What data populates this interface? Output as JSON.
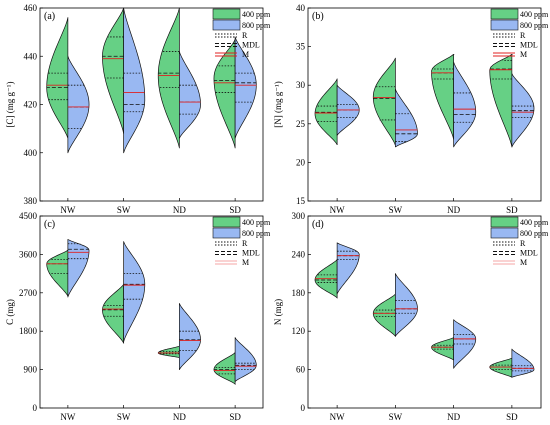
{
  "colors": {
    "400ppm": "#66d085",
    "800ppm": "#99b8f2",
    "mean": "#e02020",
    "line": "#111111",
    "legend_m_light": "#f4a6a6"
  },
  "legend_labels": {
    "g400": "400 ppm",
    "g800": "800 ppm",
    "r": "R",
    "mdl": "MDL",
    "m": "M"
  },
  "chart_data": [
    {
      "type": "violin",
      "panel": "(a)",
      "ylabel": "[C] (mg g⁻¹)",
      "ylim": [
        380,
        460
      ],
      "yticks": [
        380,
        400,
        420,
        440,
        460
      ],
      "categories": [
        "NW",
        "SW",
        "ND",
        "SD"
      ],
      "series": [
        {
          "name": "400 ppm",
          "side": "left",
          "groups": [
            {
              "min": 406,
              "max": 456,
              "peak": 427,
              "q1": 422,
              "median": 427,
              "q3": 433,
              "mean": 428
            },
            {
              "min": 408,
              "max": 460,
              "peak": 440,
              "q1": 431,
              "median": 440,
              "q3": 448,
              "mean": 439
            },
            {
              "min": 402,
              "max": 460,
              "peak": 432,
              "q1": 427,
              "median": 433,
              "q3": 442,
              "mean": 432
            },
            {
              "min": 402,
              "max": 447,
              "peak": 431,
              "q1": 425,
              "median": 430,
              "q3": 436,
              "mean": 429
            }
          ]
        },
        {
          "name": "800 ppm",
          "side": "right",
          "groups": [
            {
              "min": 400,
              "max": 440,
              "peak": 420,
              "q1": 410,
              "median": 419,
              "q3": 428,
              "mean": 419
            },
            {
              "min": 400,
              "max": 460,
              "peak": 422,
              "q1": 417,
              "median": 420,
              "q3": 433,
              "mean": 425
            },
            {
              "min": 406,
              "max": 442,
              "peak": 420,
              "q1": 416,
              "median": 421,
              "q3": 428,
              "mean": 421
            },
            {
              "min": 406,
              "max": 448,
              "peak": 428,
              "q1": 421,
              "median": 429,
              "q3": 433,
              "mean": 428
            }
          ]
        }
      ]
    },
    {
      "type": "violin",
      "panel": "(b)",
      "ylabel": "[N] (mg g⁻¹)",
      "ylim": [
        15,
        40
      ],
      "yticks": [
        15,
        20,
        25,
        30,
        35,
        40
      ],
      "categories": [
        "NW",
        "SW",
        "ND",
        "SD"
      ],
      "series": [
        {
          "name": "400 ppm",
          "side": "left",
          "groups": [
            {
              "min": 22.3,
              "max": 30.8,
              "peak": 26.3,
              "q1": 25.3,
              "median": 26.5,
              "q3": 27.3,
              "mean": 26.4
            },
            {
              "min": 22.2,
              "max": 33.5,
              "peak": 28.5,
              "q1": 25.5,
              "median": 28.3,
              "q3": 29.8,
              "mean": 28.4
            },
            {
              "min": 23.0,
              "max": 34.0,
              "peak": 31.8,
              "q1": 30.8,
              "median": 31.6,
              "q3": 32.1,
              "mean": 31.6
            },
            {
              "min": 22.0,
              "max": 34.0,
              "peak": 32.0,
              "q1": 30.8,
              "median": 32.1,
              "q3": 33.2,
              "mean": 32.0
            }
          ]
        },
        {
          "name": "800 ppm",
          "side": "right",
          "groups": [
            {
              "min": 23.5,
              "max": 30.0,
              "peak": 26.8,
              "q1": 25.8,
              "median": 26.8,
              "q3": 27.5,
              "mean": 26.8
            },
            {
              "min": 22.0,
              "max": 29.5,
              "peak": 23.7,
              "q1": 22.7,
              "median": 23.7,
              "q3": 26.3,
              "mean": 24.2
            },
            {
              "min": 22.0,
              "max": 33.0,
              "peak": 26.5,
              "q1": 25.2,
              "median": 26.2,
              "q3": 29.0,
              "mean": 26.9
            },
            {
              "min": 22.0,
              "max": 31.5,
              "peak": 27.0,
              "q1": 25.8,
              "median": 26.7,
              "q3": 27.3,
              "mean": 26.5
            }
          ]
        }
      ]
    },
    {
      "type": "violin",
      "panel": "(c)",
      "ylabel": "C (mg)",
      "ylim": [
        0,
        4500
      ],
      "yticks": [
        0,
        900,
        1800,
        2700,
        3600,
        4500
      ],
      "categories": [
        "NW",
        "SW",
        "ND",
        "SD"
      ],
      "series": [
        {
          "name": "400 ppm",
          "side": "left",
          "groups": [
            {
              "min": 2620,
              "max": 3700,
              "peak": 3380,
              "q1": 3150,
              "median": 3380,
              "q3": 3480,
              "mean": 3380
            },
            {
              "min": 1520,
              "max": 2900,
              "peak": 2300,
              "q1": 2150,
              "median": 2300,
              "q3": 2400,
              "mean": 2320
            },
            {
              "min": 1180,
              "max": 1450,
              "peak": 1290,
              "q1": 1270,
              "median": 1290,
              "q3": 1320,
              "mean": 1290
            },
            {
              "min": 560,
              "max": 1300,
              "peak": 900,
              "q1": 800,
              "median": 900,
              "q3": 950,
              "mean": 880
            }
          ]
        },
        {
          "name": "800 ppm",
          "side": "right",
          "groups": [
            {
              "min": 2600,
              "max": 3950,
              "peak": 3700,
              "q1": 3500,
              "median": 3720,
              "q3": 3850,
              "mean": 3650
            },
            {
              "min": 1550,
              "max": 3900,
              "peak": 2900,
              "q1": 2550,
              "median": 2900,
              "q3": 3150,
              "mean": 2880
            },
            {
              "min": 900,
              "max": 2450,
              "peak": 1600,
              "q1": 1350,
              "median": 1600,
              "q3": 1800,
              "mean": 1580
            },
            {
              "min": 620,
              "max": 1650,
              "peak": 1000,
              "q1": 900,
              "median": 1000,
              "q3": 1050,
              "mean": 980
            }
          ]
        }
      ]
    },
    {
      "type": "violin",
      "panel": "(d)",
      "ylabel": "N (mg)",
      "ylim": [
        0,
        300
      ],
      "yticks": [
        0,
        60,
        120,
        180,
        240,
        300
      ],
      "categories": [
        "NW",
        "SW",
        "ND",
        "SD"
      ],
      "series": [
        {
          "name": "400 ppm",
          "side": "left",
          "groups": [
            {
              "min": 172,
              "max": 232,
              "peak": 200,
              "q1": 196,
              "median": 200,
              "q3": 208,
              "mean": 202
            },
            {
              "min": 112,
              "max": 178,
              "peak": 148,
              "q1": 143,
              "median": 148,
              "q3": 153,
              "mean": 148
            },
            {
              "min": 75,
              "max": 110,
              "peak": 95,
              "q1": 92,
              "median": 95,
              "q3": 98,
              "mean": 95
            },
            {
              "min": 48,
              "max": 78,
              "peak": 64,
              "q1": 60,
              "median": 64,
              "q3": 67,
              "mean": 64
            }
          ]
        },
        {
          "name": "800 ppm",
          "side": "right",
          "groups": [
            {
              "min": 178,
              "max": 258,
              "peak": 240,
              "q1": 232,
              "median": 238,
              "q3": 245,
              "mean": 238
            },
            {
              "min": 112,
              "max": 210,
              "peak": 155,
              "q1": 148,
              "median": 155,
              "q3": 168,
              "mean": 155
            },
            {
              "min": 62,
              "max": 138,
              "peak": 108,
              "q1": 100,
              "median": 108,
              "q3": 115,
              "mean": 108
            },
            {
              "min": 48,
              "max": 92,
              "peak": 60,
              "q1": 58,
              "median": 62,
              "q3": 66,
              "mean": 62
            }
          ]
        }
      ]
    }
  ]
}
